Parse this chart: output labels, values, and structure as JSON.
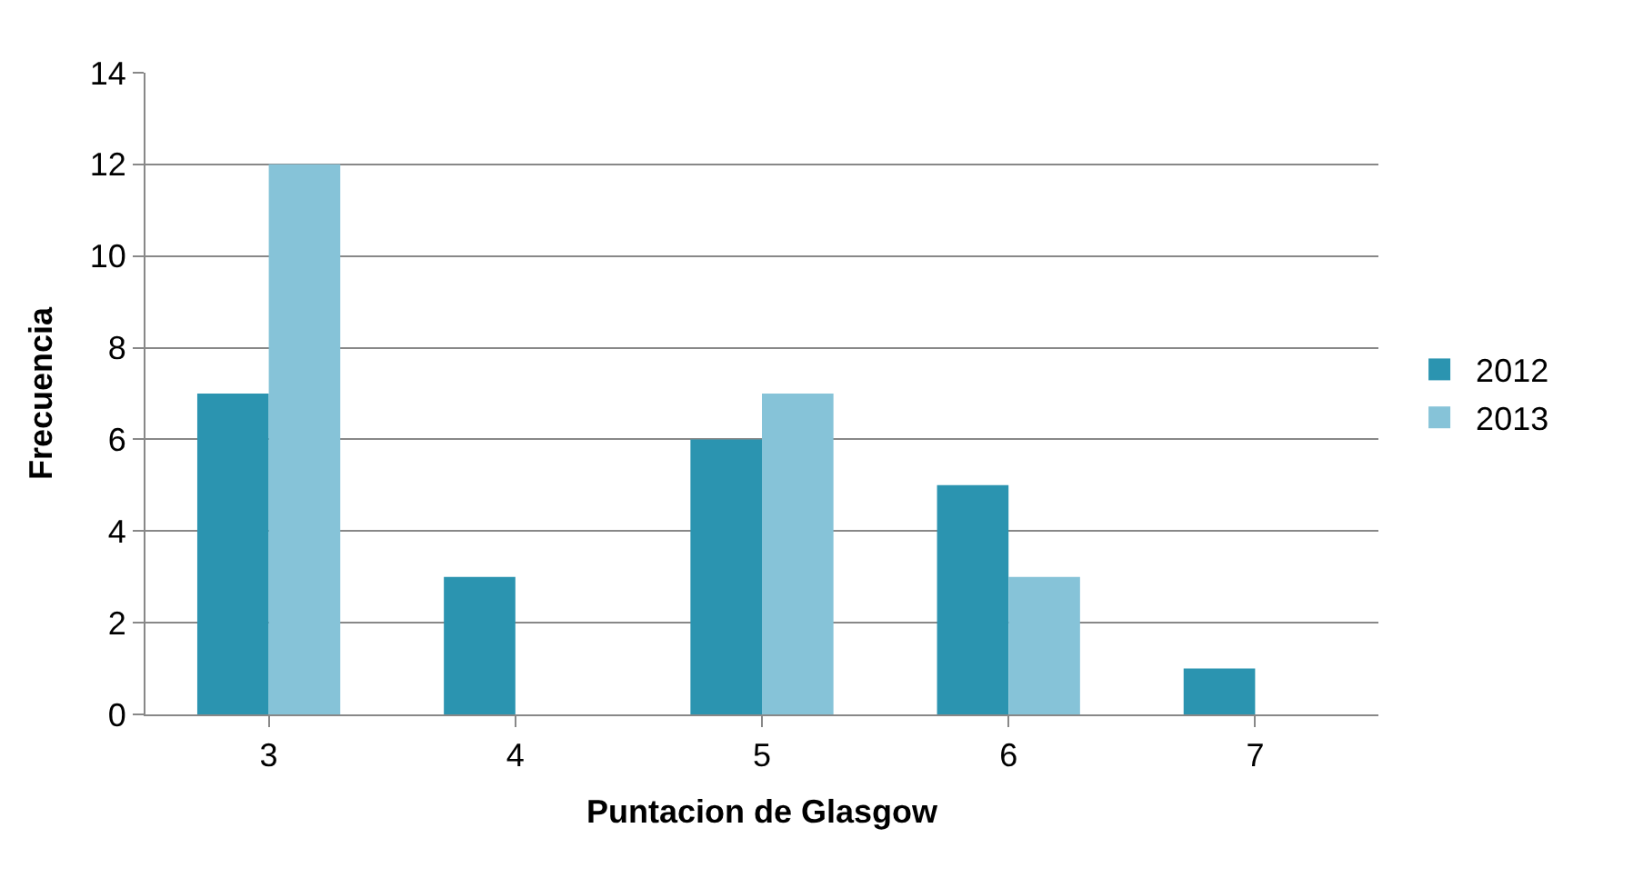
{
  "chart_data": {
    "type": "bar",
    "xlabel": "Puntacion de Glasgow",
    "ylabel": "Frecuencia",
    "categories": [
      "3",
      "4",
      "5",
      "6",
      "7"
    ],
    "series": [
      {
        "name": "2012",
        "color": "#2b94b0",
        "values": [
          7,
          3,
          6,
          5,
          1
        ]
      },
      {
        "name": "2013",
        "color": "#86c3d8",
        "values": [
          12,
          null,
          7,
          3,
          null
        ]
      }
    ],
    "ylim": [
      0,
      14
    ],
    "yticks": [
      0,
      2,
      4,
      6,
      8,
      10,
      12,
      14
    ],
    "grid": "y",
    "legend": "right"
  }
}
